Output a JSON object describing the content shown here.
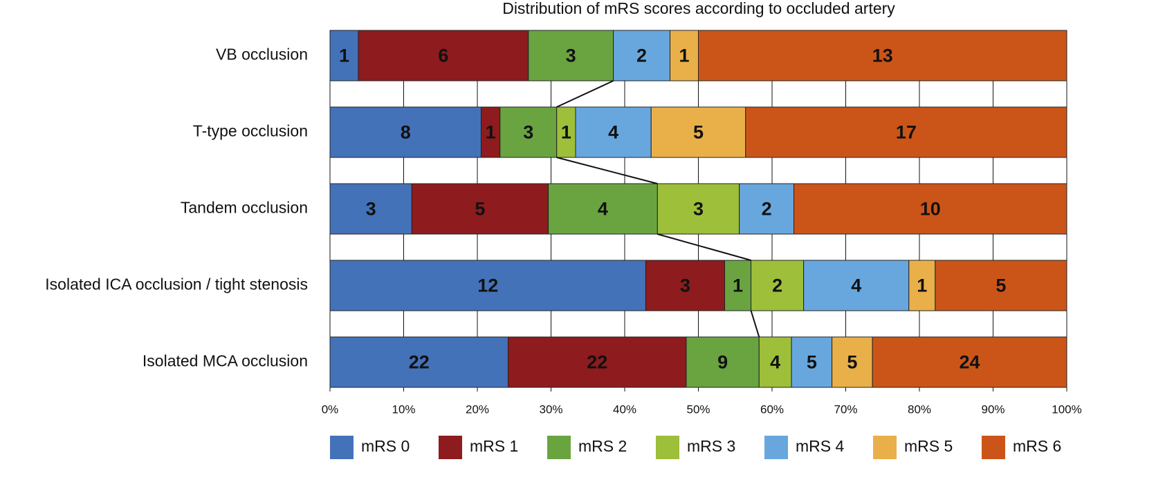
{
  "chart_data": {
    "type": "stacked-percent-bar",
    "title": "Distribution of mRS scores according to occluded artery",
    "categories": [
      "VB occlusion",
      "T-type occlusion",
      "Tandem occlusion",
      "Isolated ICA occlusion / tight stenosis",
      "Isolated MCA occlusion"
    ],
    "series": [
      {
        "name": "mRS 0",
        "color": "#4472b8",
        "values": [
          1,
          8,
          3,
          12,
          22
        ]
      },
      {
        "name": "mRS 1",
        "color": "#8e1b1d",
        "values": [
          6,
          1,
          5,
          3,
          22
        ]
      },
      {
        "name": "mRS 2",
        "color": "#69a441",
        "values": [
          3,
          3,
          4,
          1,
          9
        ]
      },
      {
        "name": "mRS 3",
        "color": "#9dbf3a",
        "values": [
          null,
          1,
          3,
          2,
          4
        ]
      },
      {
        "name": "mRS 4",
        "color": "#68a7de",
        "values": [
          2,
          4,
          2,
          4,
          5
        ]
      },
      {
        "name": "mRS 5",
        "color": "#e9b04a",
        "values": [
          1,
          5,
          null,
          1,
          5
        ]
      },
      {
        "name": "mRS 6",
        "color": "#cb5519",
        "values": [
          13,
          17,
          10,
          5,
          24
        ]
      }
    ],
    "xlim": [
      0,
      100
    ],
    "xticks": [
      {
        "value": 0,
        "label": "0%"
      },
      {
        "value": 10,
        "label": "10%"
      },
      {
        "value": 20,
        "label": "20%"
      },
      {
        "value": 30,
        "label": "30%"
      },
      {
        "value": 40,
        "label": "40%"
      },
      {
        "value": 50,
        "label": "50%"
      },
      {
        "value": 60,
        "label": "60%"
      },
      {
        "value": 70,
        "label": "70%"
      },
      {
        "value": 80,
        "label": "80%"
      },
      {
        "value": 90,
        "label": "90%"
      },
      {
        "value": 100,
        "label": "100%"
      }
    ],
    "grid": true,
    "legend": "bottom"
  }
}
